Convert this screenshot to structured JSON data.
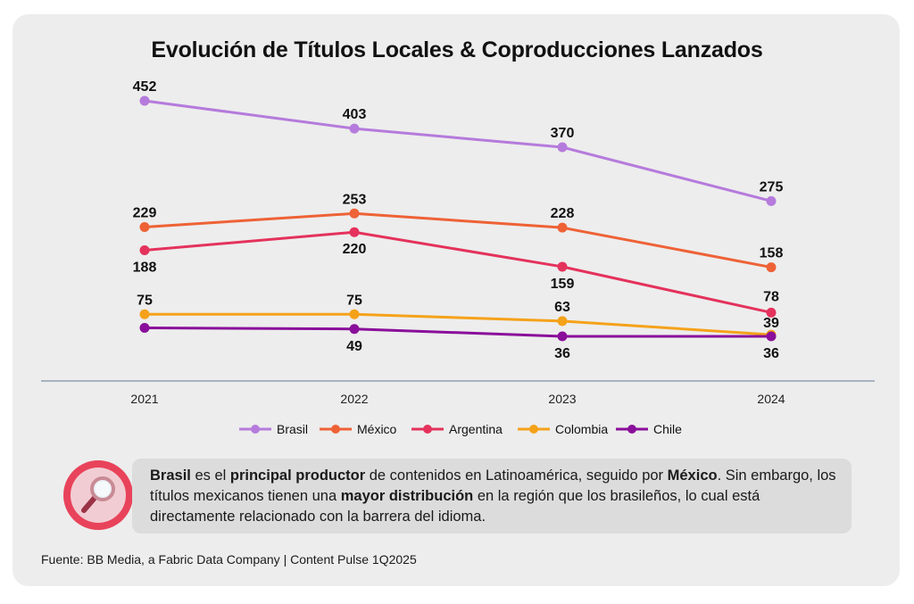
{
  "colors": {
    "background_card": "#ededed",
    "axis_line": "#a9b4c2",
    "Brasil": "#b57bdc",
    "México": "#ee6236",
    "Argentina": "#e4325c",
    "Colombia": "#f5a21a",
    "Chile": "#8a0f9a"
  },
  "chart_data": {
    "type": "line",
    "title": "Evolución de Títulos Locales & Coproducciones Lanzados",
    "x": [
      "2021",
      "2022",
      "2023",
      "2024"
    ],
    "ylim": [
      0,
      480
    ],
    "grid": false,
    "legend_position": "bottom",
    "series": [
      {
        "name": "Brasil",
        "values": [
          452,
          403,
          370,
          275
        ],
        "label_pos": [
          "above",
          "above",
          "above",
          "above"
        ]
      },
      {
        "name": "México",
        "values": [
          229,
          253,
          228,
          158
        ],
        "label_pos": [
          "above",
          "above",
          "above",
          "above"
        ]
      },
      {
        "name": "Argentina",
        "values": [
          188,
          220,
          159,
          78
        ],
        "label_pos": [
          "below",
          "below",
          "below",
          "above"
        ]
      },
      {
        "name": "Colombia",
        "values": [
          75,
          75,
          63,
          39
        ],
        "label_pos": [
          "above",
          "above",
          "above",
          "above"
        ]
      },
      {
        "name": "Chile",
        "values": [
          null,
          49,
          36,
          36
        ],
        "raw_values": [
          null,
          49,
          36,
          36
        ],
        "plot_values": [
          51,
          49,
          36,
          36
        ],
        "label_pos": [
          "none",
          "below",
          "below",
          "below"
        ]
      }
    ]
  },
  "insight": {
    "part1": "Brasil",
    "part2": " es el ",
    "part3": "principal productor",
    "part4": " de contenidos en Latinoamérica, seguido por ",
    "part5": "México",
    "part6": ". Sin embargo, los títulos mexicanos tienen una ",
    "part7": "mayor distribución",
    "part8": " en la región que los brasileños, lo cual está directamente relacionado con la barrera del idioma.",
    "icon": "magnifier-icon"
  },
  "source": "Fuente: BB Media, a Fabric Data Company | Content Pulse 1Q2025"
}
